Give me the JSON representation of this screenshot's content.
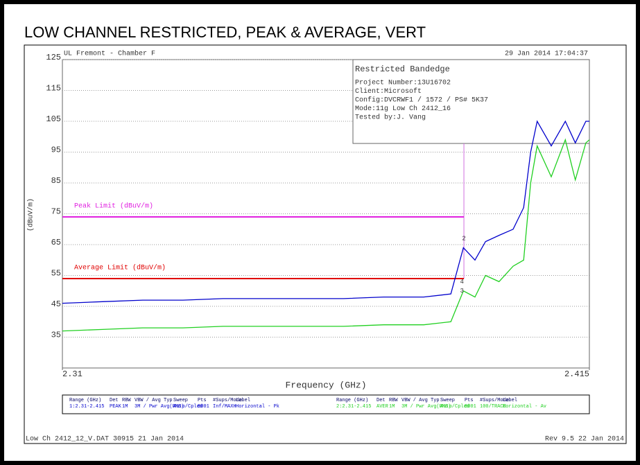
{
  "chart_data": {
    "type": "line",
    "title": "LOW CHANNEL RESTRICTED, PEAK & AVERAGE, VERT",
    "header_left": "UL Fremont - Chamber F",
    "header_right": "29 Jan 2014    17:04:37",
    "y_label": "(dBuV/m)",
    "x_label": "Frequency (GHz)",
    "xlim": [
      2.31,
      2.415
    ],
    "xticks": [
      2.31,
      2.415
    ],
    "ylim": [
      25,
      125
    ],
    "yticks": [
      125,
      115,
      105,
      95,
      85,
      75,
      65,
      55,
      45,
      35
    ],
    "grid": true,
    "limits": [
      {
        "name": "Peak Limit (dBuV/m)",
        "value": 74,
        "color": "#e020e0"
      },
      {
        "name": "Average Limit (dBuV/m)",
        "value": 54,
        "color": "#e00000"
      }
    ],
    "marker_x": 2.39,
    "marker_color": "#d070e0",
    "markers": [
      {
        "label": "2",
        "x": 2.39,
        "y": 67
      },
      {
        "label": "4",
        "x": 2.3896,
        "y": 53
      },
      {
        "label": "3",
        "x": 2.3896,
        "y": 50
      }
    ],
    "x": [
      2.31,
      2.318,
      2.326,
      2.334,
      2.342,
      2.35,
      2.358,
      2.366,
      2.374,
      2.382,
      2.3874,
      2.3899,
      2.3922,
      2.3943,
      2.397,
      2.3998,
      2.4019,
      2.4033,
      2.4046,
      2.4074,
      2.4102,
      2.4122,
      2.4143,
      2.415
    ],
    "series": [
      {
        "name": "Horizontal - Pk",
        "color": "#0000cc",
        "values": [
          46,
          46.5,
          47,
          47,
          47.5,
          47.5,
          47.5,
          47.5,
          48,
          48,
          49,
          64,
          60,
          66,
          68,
          70,
          77,
          95,
          105,
          97,
          105,
          98,
          105,
          105
        ]
      },
      {
        "name": "Horizontal - Av",
        "color": "#20d020",
        "values": [
          37,
          37.5,
          38,
          38,
          38.5,
          38.5,
          38.5,
          38.5,
          39,
          39,
          40,
          50,
          48,
          55,
          53,
          58,
          60,
          85,
          97,
          87,
          99,
          86,
          98,
          99
        ]
      }
    ],
    "info_box": {
      "title": "Restricted Bandedge",
      "lines": [
        "Project Number:13U16702",
        "Client:Microsoft",
        "Config:DVCRWF1 / 1572 / PS# 5K37",
        "Mode:11g Low Ch 2412_16",
        "Tested by:J. Vang"
      ]
    },
    "legend_headers": [
      "Range (GHz)",
      "Det",
      "RBW",
      "VBW / Avg Typ",
      "Sweep",
      "Pts",
      "#Sups/Mode",
      "Label"
    ],
    "legend_rows": [
      [
        "1:2.31-2.415",
        "PEAK",
        "1M",
        "3M / Pwr Avg(RMS)",
        "Auto/Cpled",
        "8001",
        "Inf/MAXH",
        "Horizontal - Pk"
      ],
      [
        "2:2.31-2.415",
        "AVER",
        "1M",
        "3M / Pwr Avg(RMS)",
        "Auto/Cpled",
        "8001",
        "100/TRACE",
        "Horizontal - Av"
      ]
    ],
    "footer_left": "Low Ch 2412_12_V.DAT 30915 21 Jan 2014",
    "footer_right": "Rev 9.5 22 Jan 2014"
  }
}
